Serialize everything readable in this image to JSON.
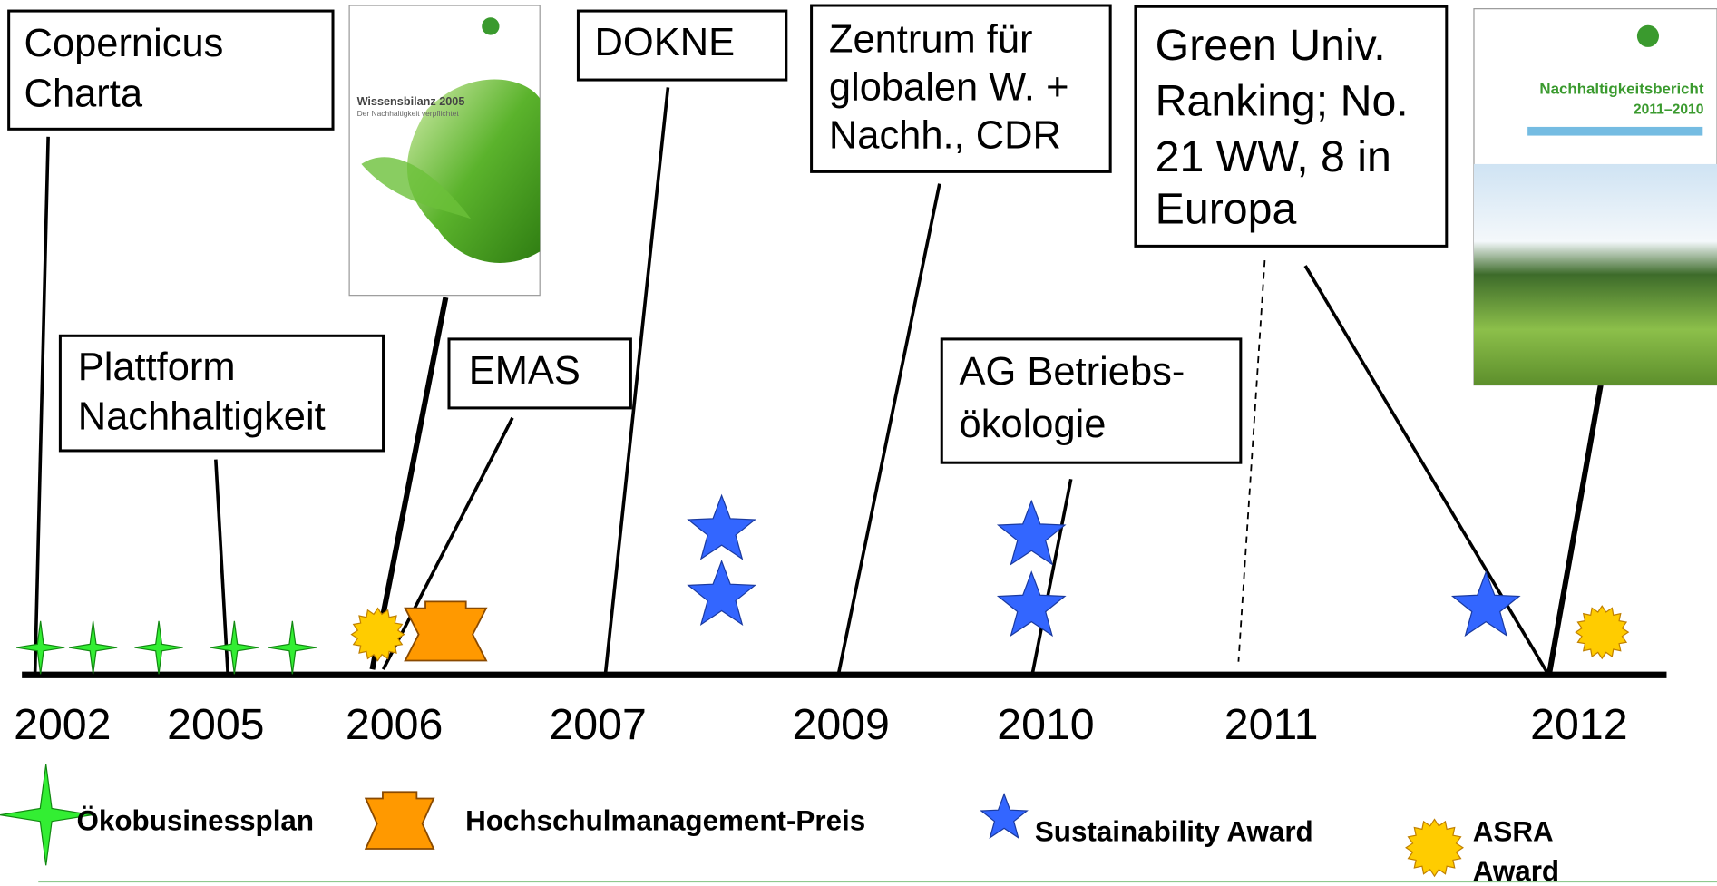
{
  "boxes": [
    {
      "lines": [
        "Copernicus",
        "Charta"
      ]
    },
    {
      "lines": [
        "Plattform",
        "Nachhaltigkeit"
      ]
    },
    {
      "lines": [
        "EMAS"
      ]
    },
    {
      "lines": [
        "DOKNE"
      ]
    },
    {
      "lines": [
        "Zentrum für",
        "globalen W. +",
        "Nachh., CDR"
      ]
    },
    {
      "lines": [
        "AG Betriebs-",
        "ökologie"
      ]
    },
    {
      "lines": [
        "Green Univ.",
        "Ranking; No.",
        "21 WW, 8 in",
        "Europa"
      ]
    }
  ],
  "covers": [
    {
      "title": "Wissensbilanz 2005",
      "subtitle": "Der Nachhaltigkeit verpflichtet"
    },
    {
      "title": "Nachhaltigkeitsbericht",
      "subtitle": "2011–2010"
    }
  ],
  "years": [
    "2002",
    "2005",
    "2006",
    "2007",
    "2009",
    "2010",
    "2011",
    "2012"
  ],
  "legend": [
    {
      "lines": [
        "Ökobusinessplan"
      ]
    },
    {
      "lines": [
        "Hochschulmanagement-Preis"
      ]
    },
    {
      "lines": [
        "Sustainability Award"
      ]
    },
    {
      "lines": [
        "ASRA",
        "Award"
      ]
    }
  ]
}
